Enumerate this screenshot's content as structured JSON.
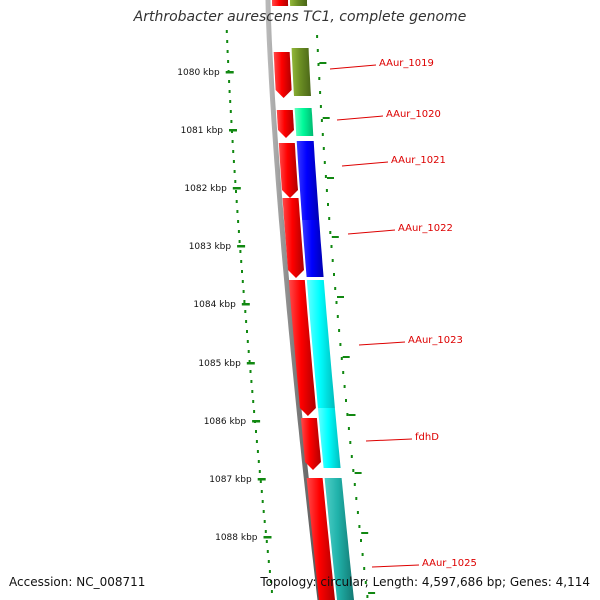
{
  "title": "Arthrobacter aurescens TC1, complete genome",
  "accession": "Accession: NC_008711",
  "summary": "Topology: circular; Length: 4,597,686 bp; Genes: 4,114",
  "ruler": {
    "unit": "kbp",
    "ticks": [
      "1080 kbp",
      "1081 kbp",
      "1082 kbp",
      "1083 kbp",
      "1084 kbp",
      "1085 kbp",
      "1086 kbp",
      "1087 kbp",
      "1088 kbp"
    ],
    "tick_color": "#118811"
  },
  "strand_colors": {
    "reverse": "#ff0000",
    "backbone": "#808080",
    "label": "#dd0000",
    "label_line": "#dd0000"
  },
  "genes": [
    {
      "label": "AAur_1019",
      "strand": "reverse",
      "feature_color": "#6b8e23"
    },
    {
      "label": "AAur_1020",
      "strand": "reverse",
      "feature_color": "#00fa9a"
    },
    {
      "label": "AAur_1021",
      "strand": "reverse",
      "feature_color": "#0000ff"
    },
    {
      "label": "AAur_1022",
      "strand": "reverse",
      "feature_color": "#0000ff"
    },
    {
      "label": "AAur_1023",
      "strand": "reverse",
      "feature_color": "#00ffff"
    },
    {
      "label": "fdhD",
      "strand": "reverse",
      "feature_color": "#00ffff"
    },
    {
      "label": "AAur_1025",
      "strand": "reverse",
      "feature_color": "#20b2aa"
    }
  ]
}
